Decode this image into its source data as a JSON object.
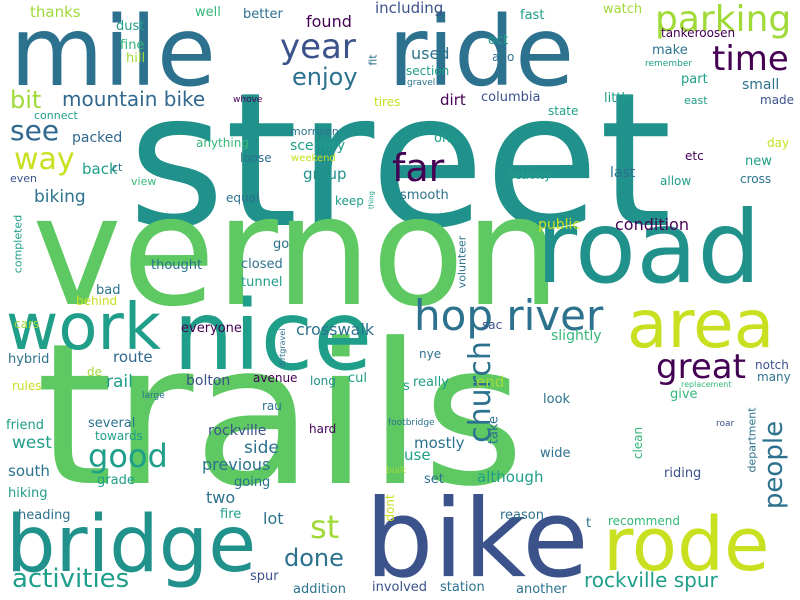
{
  "colors": {
    "background": "#ffffff",
    "dark_purple": "#440154",
    "indigo": "#3b528b",
    "blue": "#31688e",
    "teal_blue": "#2c728e",
    "teal": "#21918c",
    "teal_green": "#1f9e89",
    "green": "#35b779",
    "light_green": "#5ec962",
    "lime": "#a0da39",
    "yellow_green": "#c8e020"
  },
  "words": [
    "street",
    "trails",
    "vernon",
    "bike",
    "mile",
    "ride",
    "road",
    "nice",
    "bridge",
    "work",
    "area",
    "rode",
    "hop river",
    "parking",
    "time",
    "year",
    "enjoy",
    "far",
    "see",
    "way",
    "bit",
    "mountain bike",
    "great",
    "church",
    "people",
    "good",
    "st",
    "activities",
    "done",
    "rockville spur",
    "found",
    "used",
    "columbia",
    "dirt",
    "including",
    "thanks",
    "fast",
    "watch",
    "dust",
    "oct",
    "well",
    "better",
    "fine",
    "hill",
    "fit",
    "make",
    "remember",
    "tankeroosen",
    "section",
    "ago",
    "gravel",
    "tires",
    "part",
    "small",
    "little",
    "east",
    "made",
    "whove",
    "connect",
    "state",
    "packed",
    "morrison",
    "anything",
    "scenery",
    "weekend",
    "one",
    "loose",
    "last",
    "day",
    "new",
    "etc",
    "allow",
    "cross",
    "even",
    "back",
    "ct",
    "view",
    "group",
    "activity",
    "smooth",
    "keep",
    "thing",
    "biking",
    "equal",
    "completed",
    "public",
    "condition",
    "volunteer",
    "go",
    "closed",
    "tunnel",
    "thought",
    "bad",
    "cars",
    "behind",
    "everyone",
    "crosswalk",
    "sac",
    "route",
    "slightly",
    "hybrid",
    "rail",
    "bolton",
    "avenue",
    "long",
    "cul",
    "s",
    "nye",
    "notch",
    "replacement",
    "de",
    "dirtgravel",
    "end",
    "many",
    "rules",
    "really",
    "large",
    "rau",
    "look",
    "give",
    "friend",
    "several",
    "towards",
    "hard",
    "mostly",
    "take",
    "footbridge",
    "roar",
    "west",
    "rockville",
    "use",
    "clean",
    "wide",
    "side",
    "department",
    "south",
    "previous",
    "going",
    "grade",
    "although",
    "riding",
    "built",
    "set",
    "hiking",
    "two",
    "heading",
    "fire",
    "lot",
    "dont",
    "reason",
    "recommend",
    "t",
    "spur",
    "addition",
    "involved",
    "station",
    "another"
  ]
}
